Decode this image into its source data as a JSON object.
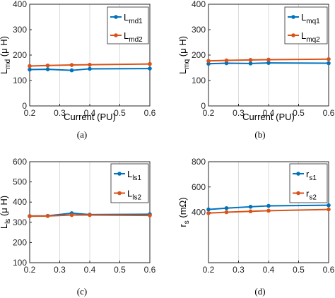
{
  "colors": {
    "series1": "#0072BD",
    "series2": "#D95319",
    "axis": "#262626",
    "grid": "#dcdcdc"
  },
  "chart_data": [
    {
      "type": "line",
      "caption": "(a)",
      "xlabel": "Current (PU)",
      "ylabel_main": "L",
      "ylabel_sub": "md",
      "ylabel_unit": " (μ H)",
      "xlim": [
        0.2,
        0.6
      ],
      "ylim": [
        0,
        400
      ],
      "xticks": [
        0.2,
        0.3,
        0.4,
        0.5,
        0.6
      ],
      "xtick_labels": [
        "0.2",
        "0.3",
        "0.4",
        "0.5",
        "0.6"
      ],
      "yticks": [
        0,
        100,
        200,
        300,
        400
      ],
      "ytick_labels": [
        "0",
        "100",
        "200",
        "300",
        "400"
      ],
      "legend_position": "top-right",
      "grid": "x-only",
      "x": [
        0.2,
        0.26,
        0.34,
        0.4,
        0.6
      ],
      "series": [
        {
          "name_main": "L",
          "name_sub": "md1",
          "values": [
            143,
            144,
            140,
            146,
            147
          ]
        },
        {
          "name_main": "L",
          "name_sub": "md2",
          "values": [
            157,
            159,
            161,
            162,
            165
          ]
        }
      ]
    },
    {
      "type": "line",
      "caption": "(b)",
      "xlabel": "Current (PU)",
      "ylabel_main": "L",
      "ylabel_sub": "mq",
      "ylabel_unit": " (μ H)",
      "xlim": [
        0.2,
        0.6
      ],
      "ylim": [
        0,
        400
      ],
      "xticks": [
        0.2,
        0.3,
        0.4,
        0.5,
        0.6
      ],
      "xtick_labels": [
        "0.2",
        "0.3",
        "0.4",
        "0.5",
        "0.6"
      ],
      "yticks": [
        0,
        100,
        200,
        300,
        400
      ],
      "ytick_labels": [
        "0",
        "100",
        "200",
        "300",
        "400"
      ],
      "legend_position": "top-right",
      "grid": "x-only",
      "x": [
        0.2,
        0.26,
        0.34,
        0.4,
        0.6
      ],
      "series": [
        {
          "name_main": "L",
          "name_sub": "mq1",
          "values": [
            166,
            168,
            167,
            169,
            168
          ]
        },
        {
          "name_main": "L",
          "name_sub": "mq2",
          "values": [
            177,
            179,
            181,
            182,
            184
          ]
        }
      ]
    },
    {
      "type": "line",
      "caption": "(c)",
      "xlabel": "",
      "ylabel_main": "L",
      "ylabel_sub": "ls",
      "ylabel_unit": " (μ H)",
      "xlim": [
        0.2,
        0.6
      ],
      "ylim": [
        100,
        600
      ],
      "xticks": [
        0.2,
        0.3,
        0.4,
        0.5,
        0.6
      ],
      "xtick_labels": [
        "0.2",
        "0.3",
        "0.4",
        "0.5",
        "0.6"
      ],
      "yticks": [
        100,
        200,
        300,
        400,
        500,
        600
      ],
      "ytick_labels": [
        "100",
        "200",
        "300",
        "400",
        "500",
        "600"
      ],
      "legend_position": "top-right",
      "grid": "x-only",
      "x": [
        0.2,
        0.26,
        0.34,
        0.4,
        0.6
      ],
      "series": [
        {
          "name_main": "L",
          "name_sub": "ls1",
          "values": [
            331,
            332,
            345,
            338,
            340
          ]
        },
        {
          "name_main": "L",
          "name_sub": "ls2",
          "values": [
            330,
            331,
            336,
            336,
            334
          ]
        }
      ]
    },
    {
      "type": "line",
      "caption": "(d)",
      "xlabel": "",
      "ylabel_main": "r",
      "ylabel_sub": "s",
      "ylabel_unit": " (mΩ)",
      "xlim": [
        0.2,
        0.6
      ],
      "ylim": [
        0,
        800
      ],
      "xticks": [
        0.2,
        0.3,
        0.4,
        0.5,
        0.6
      ],
      "xtick_labels": [
        "0.2",
        "0.3",
        "0.4",
        "0.5",
        "0.6"
      ],
      "yticks": [
        400,
        600,
        800
      ],
      "ytick_labels": [
        "400",
        "600",
        "800"
      ],
      "legend_position": "top-right",
      "grid": "x-only",
      "x": [
        0.2,
        0.26,
        0.34,
        0.4,
        0.6
      ],
      "series": [
        {
          "name_main": "r",
          "name_sub": "s1",
          "values": [
            422,
            432,
            443,
            450,
            455
          ]
        },
        {
          "name_main": "r",
          "name_sub": "s2",
          "values": [
            393,
            400,
            407,
            412,
            422
          ]
        }
      ]
    }
  ]
}
